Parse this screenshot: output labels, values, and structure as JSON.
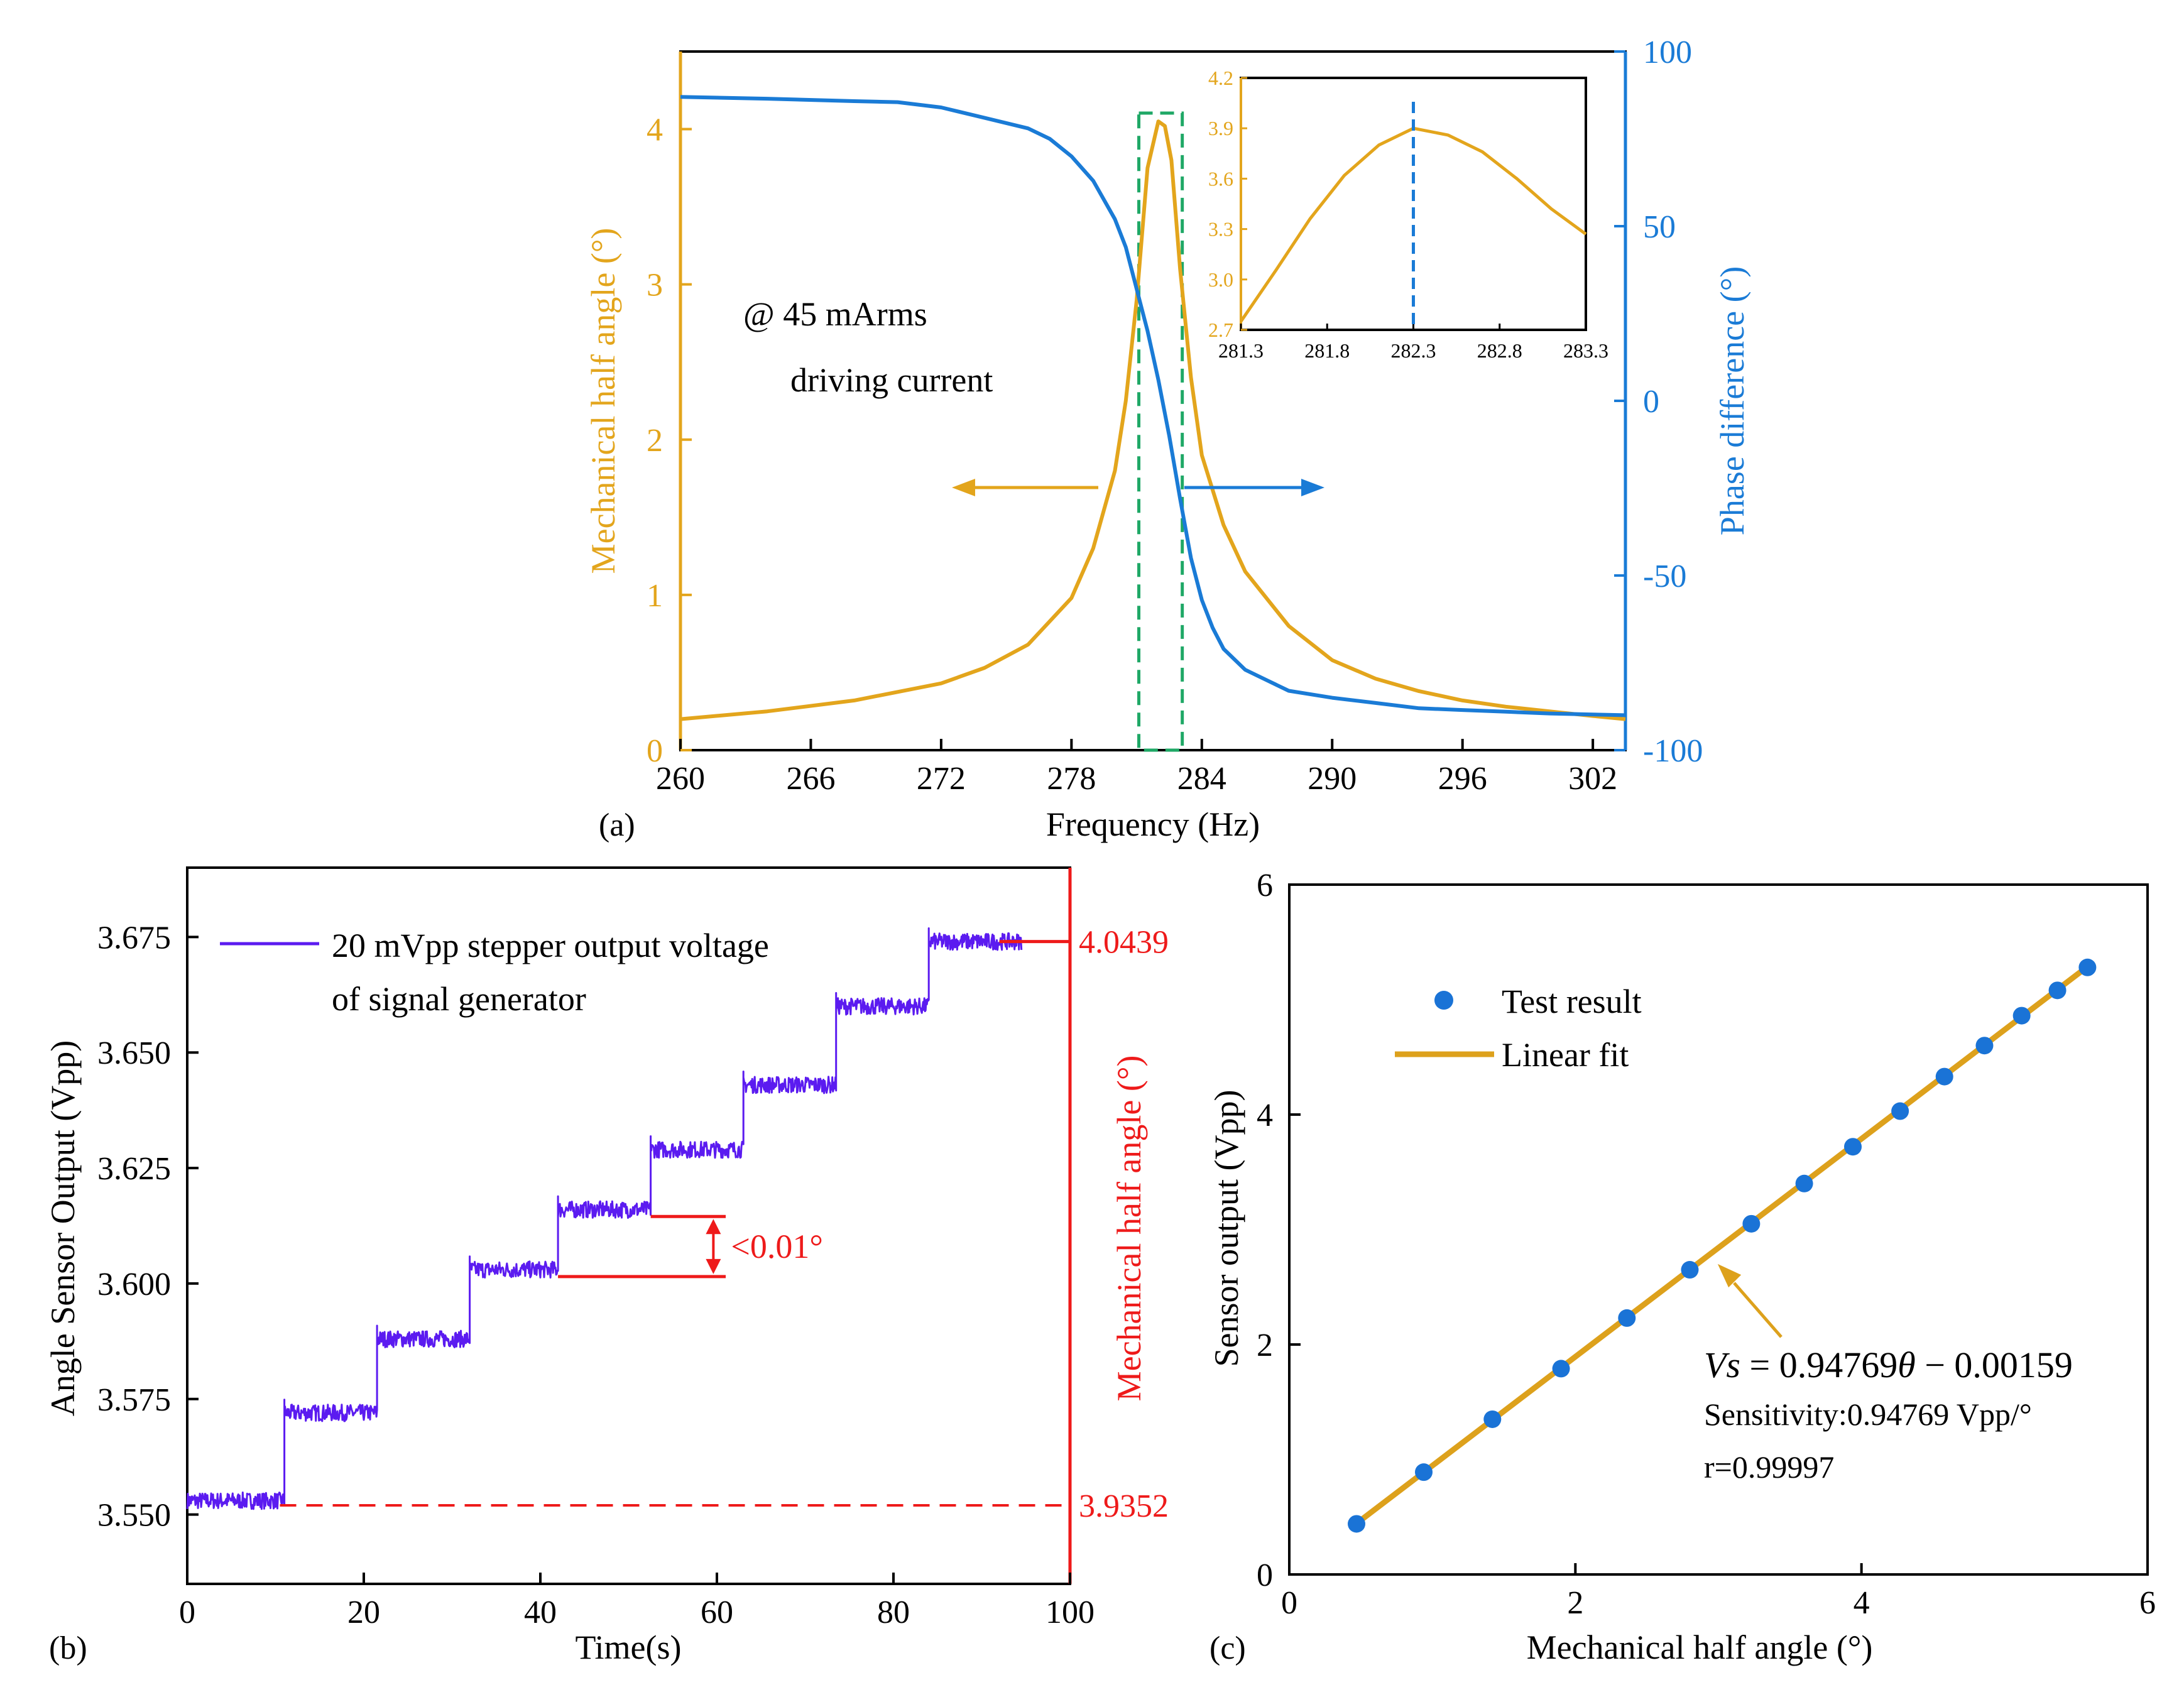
{
  "colors": {
    "amplitude": "#E3A51C",
    "phase": "#1A7BD6",
    "highlight": "#1FA866",
    "step": "#5B1BF0",
    "annotation": "#EE1A1A",
    "fit": "#DDA11C",
    "points": "#1A73D6",
    "axis": "#000000"
  },
  "chart_data": [
    {
      "panel": "(a)",
      "type": "line",
      "xlabel": "Frequency (Hz)",
      "ylabel": "Mechanical half angle (°)",
      "y2label": "Phase difference (°)",
      "xlim": [
        260,
        303.5
      ],
      "ylim": [
        0,
        4.5
      ],
      "y2lim": [
        -100,
        100
      ],
      "xticks": [
        "260",
        "266",
        "272",
        "278",
        "284",
        "290",
        "296",
        "302"
      ],
      "yticks": [
        "0",
        "1",
        "2",
        "3",
        "4"
      ],
      "y2ticks": [
        "-100",
        "-50",
        "0",
        "50",
        "100"
      ],
      "annotation_line1": "@ 45 mArms",
      "annotation_line2": "driving current",
      "highlight_range": [
        281.1,
        283.1
      ],
      "series": [
        {
          "name": "Mechanical half angle",
          "axis": "left",
          "x": [
            260,
            264,
            268,
            272,
            274,
            276,
            278,
            279,
            280,
            280.5,
            281,
            281.5,
            282,
            282.3,
            282.6,
            283,
            283.5,
            284,
            285,
            286,
            288,
            290,
            292,
            294,
            296,
            298,
            300,
            302,
            303.5
          ],
          "y": [
            0.2,
            0.25,
            0.32,
            0.43,
            0.53,
            0.68,
            0.98,
            1.3,
            1.8,
            2.25,
            2.9,
            3.75,
            4.05,
            4.02,
            3.8,
            3.1,
            2.4,
            1.9,
            1.45,
            1.15,
            0.8,
            0.58,
            0.46,
            0.38,
            0.32,
            0.28,
            0.25,
            0.22,
            0.2
          ]
        },
        {
          "name": "Phase difference",
          "axis": "right",
          "x": [
            260,
            264,
            268,
            270,
            272,
            274,
            276,
            277,
            278,
            279,
            280,
            280.5,
            281,
            281.5,
            282,
            282.5,
            283,
            283.5,
            284,
            284.5,
            285,
            286,
            287,
            288,
            290,
            292,
            294,
            296,
            298,
            300,
            302,
            303.5
          ],
          "y": [
            87,
            86.5,
            85.8,
            85.5,
            84,
            81,
            78,
            75,
            70,
            63,
            52,
            44,
            32,
            20,
            6,
            -10,
            -28,
            -45,
            -57,
            -65,
            -71,
            -77,
            -80,
            -83,
            -85,
            -86.5,
            -88,
            -88.5,
            -89,
            -89.5,
            -89.8,
            -90
          ]
        }
      ],
      "inset": {
        "xlim": [
          281.3,
          283.3
        ],
        "ylim": [
          2.7,
          4.2
        ],
        "xticks": [
          "281.3",
          "281.8",
          "282.3",
          "282.8",
          "283.3"
        ],
        "yticks": [
          "2.7",
          "3.0",
          "3.3",
          "3.6",
          "3.9",
          "4.2"
        ],
        "peak_x": 282.3,
        "x": [
          281.3,
          281.5,
          281.7,
          281.9,
          282.1,
          282.3,
          282.5,
          282.7,
          282.9,
          283.1,
          283.3
        ],
        "y": [
          2.75,
          3.05,
          3.36,
          3.62,
          3.8,
          3.9,
          3.86,
          3.76,
          3.6,
          3.42,
          3.27
        ]
      }
    },
    {
      "panel": "(b)",
      "type": "line",
      "xlabel": "Time(s)",
      "ylabel": "Angle Sensor Output (Vpp)",
      "y2label": "Mechanical half angle (°)",
      "xlim": [
        0,
        100
      ],
      "ylim": [
        3.535,
        3.69
      ],
      "xticks": [
        "0",
        "20",
        "40",
        "60",
        "80",
        "100"
      ],
      "yticks": [
        "3.550",
        "3.575",
        "3.600",
        "3.625",
        "3.650",
        "3.675"
      ],
      "legend": "20 mVpp stepper output voltage",
      "legend_line2": "of signal generator",
      "step_edges": [
        0,
        11,
        21.5,
        32,
        42,
        52.5,
        63,
        73.5,
        84,
        94.5
      ],
      "step_levels": [
        3.553,
        3.572,
        3.588,
        3.603,
        3.616,
        3.629,
        3.643,
        3.66,
        3.674
      ],
      "noise_amplitude": 0.0018,
      "ref_high_level": 3.674,
      "ref_high_label": "4.0439",
      "ref_low_level": 3.552,
      "ref_low_label": "3.9352",
      "delta_upper": 3.6145,
      "delta_lower": 3.6015,
      "delta_label": "<0.01°"
    },
    {
      "panel": "(c)",
      "type": "scatter",
      "xlabel": "Mechanical half angle (°)",
      "ylabel": "Sensor output (Vpp)",
      "xlim": [
        0,
        6
      ],
      "ylim": [
        0,
        6
      ],
      "xticks": [
        "0",
        "2",
        "4",
        "6"
      ],
      "yticks": [
        "0",
        "2",
        "4",
        "6"
      ],
      "legend_points": "Test result",
      "legend_fit": "Linear fit",
      "x": [
        0.47,
        0.94,
        1.42,
        1.9,
        2.36,
        2.8,
        3.23,
        3.6,
        3.94,
        4.27,
        4.58,
        4.86,
        5.12,
        5.37,
        5.58
      ],
      "y": [
        0.44,
        0.89,
        1.35,
        1.79,
        2.23,
        2.65,
        3.05,
        3.4,
        3.72,
        4.03,
        4.33,
        4.6,
        4.86,
        5.08,
        5.28
      ],
      "fit_slope": 0.94769,
      "fit_intercept": -0.00159,
      "equation_lhs": "Vs",
      "equation_mid": " = 0.94769",
      "equation_theta": "θ",
      "equation_rhs": " − 0.00159",
      "sensitivity": "Sensitivity:0.94769 Vpp/°",
      "r_value": "r=0.99997"
    }
  ]
}
